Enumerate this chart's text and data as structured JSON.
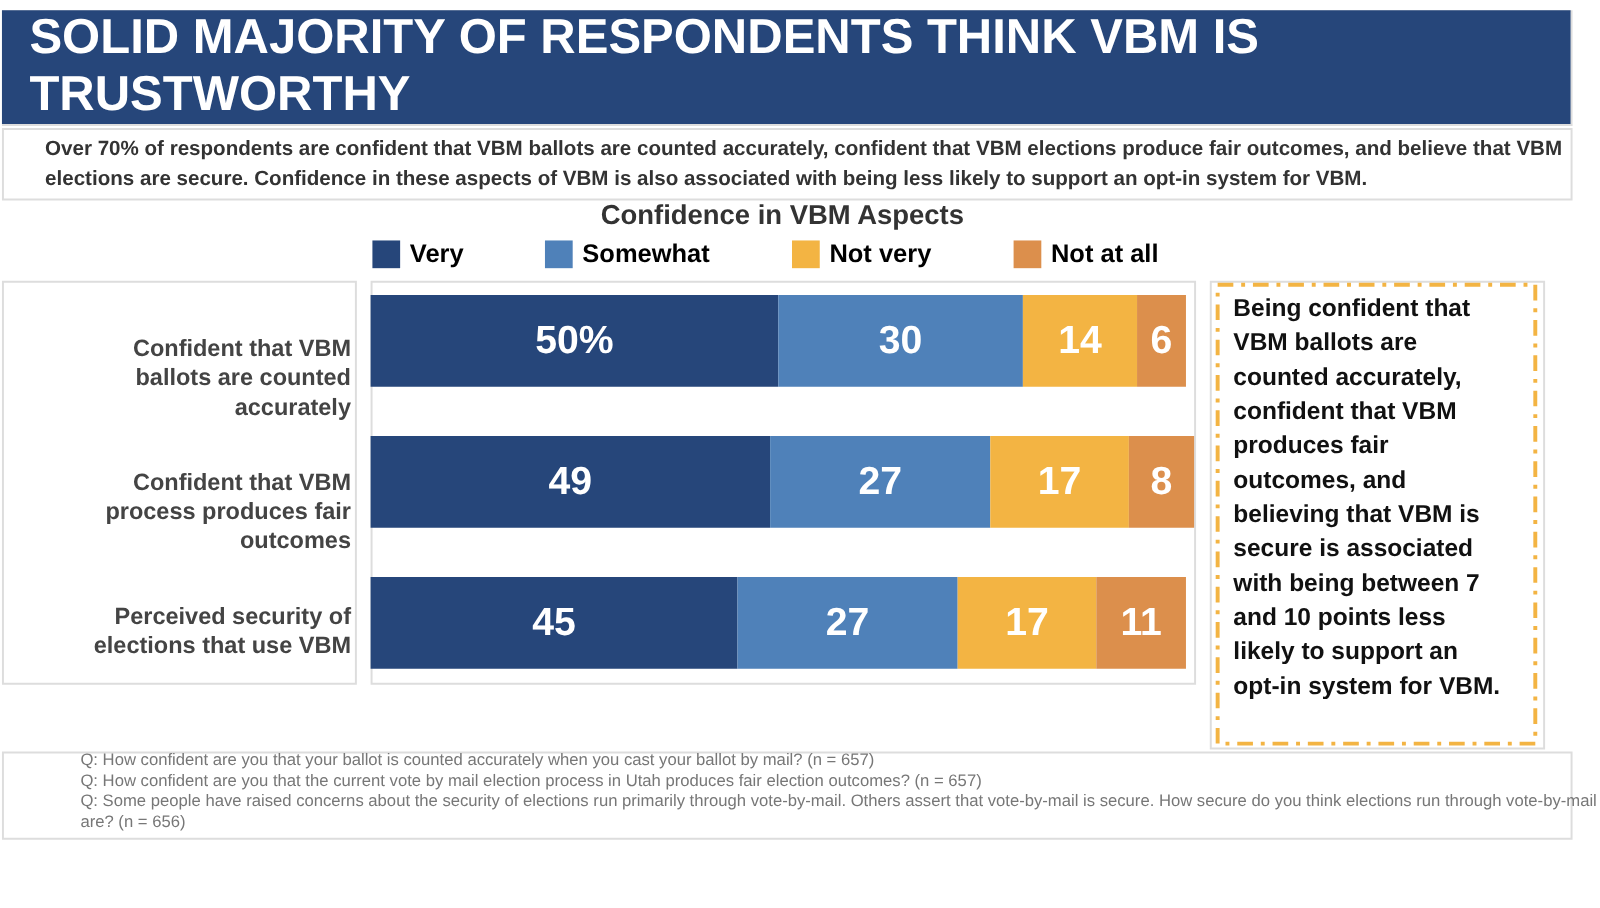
{
  "chart_data": {
    "type": "bar",
    "orientation": "horizontal",
    "stacked": true,
    "title": "SOLID MAJORITY OF RESPONDENTS THINK VBM IS TRUSTWORTHY",
    "subtitle": "Over 70% of respondents are confident that VBM ballots are counted accurately, confident that VBM elections produce fair outcomes, and believe that VBM elections are secure. Confidence in these aspects of VBM is also associated with being less likely to support an opt-in system for VBM.",
    "xlabel": "Confidence in VBM Aspects",
    "categories": [
      "Confident that VBM ballots are counted accurately",
      "Confident that VBM process produces fair outcomes",
      "Perceived security of elections that use VBM"
    ],
    "series": [
      {
        "name": "Very",
        "color": "#26467a",
        "values": [
          50,
          49,
          45
        ],
        "value_labels": [
          "50%",
          "49",
          "45"
        ]
      },
      {
        "name": "Somewhat",
        "color": "#4f81b9",
        "values": [
          30,
          27,
          27
        ],
        "value_labels": [
          "30",
          "27",
          "27"
        ]
      },
      {
        "name": "Not very",
        "color": "#f3b443",
        "values": [
          14,
          17,
          17
        ],
        "value_labels": [
          "14",
          "17",
          "17"
        ]
      },
      {
        "name": "Not at all",
        "color": "#dc8f4c",
        "values": [
          6,
          8,
          11
        ],
        "value_labels": [
          "6",
          "8",
          "11"
        ]
      }
    ],
    "xlim": [
      0,
      101
    ],
    "tick_labels": "y",
    "legend": "top",
    "annotations": [
      "Being confident that VBM ballots are counted accurately, confident that VBM produces fair outcomes, and believing that VBM is secure is associated with being between 7 and 10 points less likely to support an opt-in system for VBM.",
      "Q: How confident are you that your ballot is counted accurately when you cast your ballot by mail? (n = 657)",
      "Q: How confident are you that the current vote by mail election process in Utah produces fair election outcomes? (n = 657)",
      "Q: Some people have raised concerns about the security of elections run primarily through vote-by-mail. Others assert that vote-by-mail is secure. How secure do you think elections run through vote-by-mail are? (n = 656)"
    ]
  }
}
